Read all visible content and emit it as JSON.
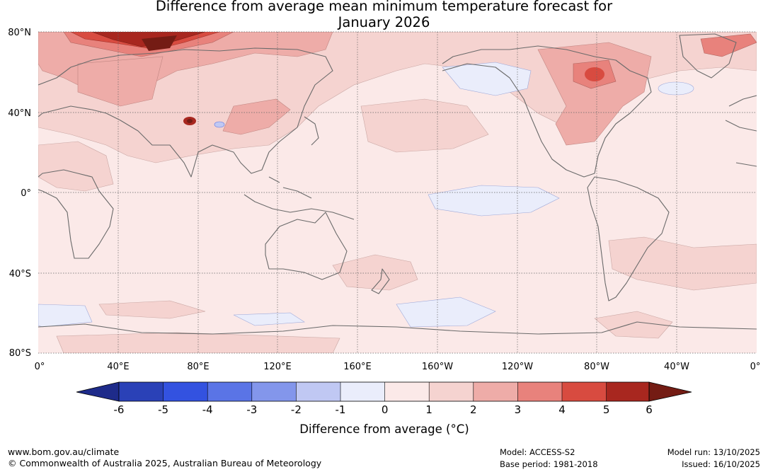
{
  "title": {
    "line1": "Difference from average mean minimum temperature forecast for",
    "line2": "January 2026"
  },
  "map": {
    "lat_labels": [
      "80°N",
      "40°N",
      "0°",
      "40°S",
      "80°S"
    ],
    "lon_labels": [
      "0°",
      "40°E",
      "80°E",
      "120°E",
      "160°E",
      "160°W",
      "120°W",
      "80°W",
      "40°W",
      "0°"
    ],
    "ocean_color": "#fbe9e8"
  },
  "colorbar": {
    "ticks": [
      "-6",
      "-5",
      "-4",
      "-3",
      "-2",
      "-1",
      "0",
      "1",
      "2",
      "3",
      "4",
      "5",
      "6"
    ],
    "colors": [
      "#1e2b8a",
      "#2a41b7",
      "#3352e0",
      "#5a74e6",
      "#8396eb",
      "#c0c8f3",
      "#eaedfb",
      "#fbe9e8",
      "#f5d3d0",
      "#eeaca8",
      "#e8827c",
      "#d84b40",
      "#a8271f",
      "#741c14"
    ],
    "label": "Difference from average (°C)"
  },
  "footer": {
    "website": "www.bom.gov.au/climate",
    "copyright": "© Commonwealth of Australia 2025, Australian Bureau of Meteorology",
    "model": "Model: ACCESS-S2",
    "base_period": "Base period: 1981-2018",
    "model_run": "Model run: 13/10/2025",
    "issued": "Issued: 16/10/2025"
  }
}
